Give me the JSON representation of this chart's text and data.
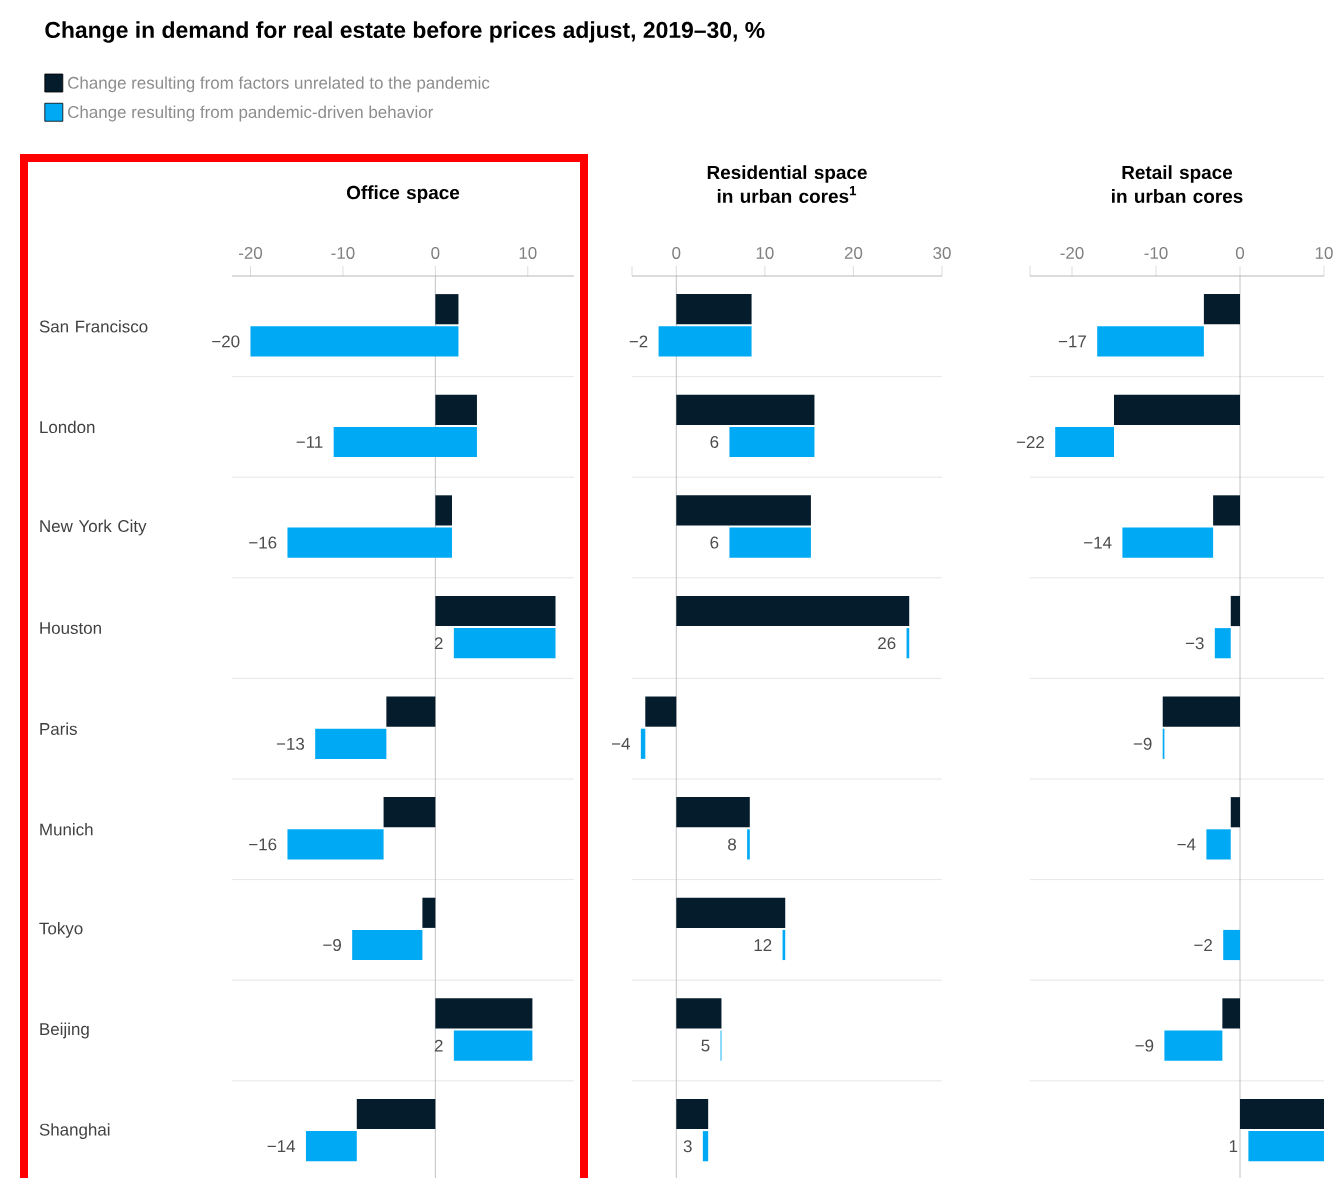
{
  "chart_data": [
    {
      "type": "bar",
      "title": "Change in demand for real estate before prices adjust, 2019–30, %",
      "subtitle": "Office space",
      "orientation": "horizontal",
      "legend": "top left",
      "grid": "y",
      "categories": [
        "San Francisco",
        "London",
        "New York City",
        "Houston",
        "Paris",
        "Munich",
        "Tokyo",
        "Beijing",
        "Shanghai"
      ],
      "series": [
        {
          "name": "Change resulting from factors unrelated to the pandemic",
          "color": "#051c2c",
          "values": [
            2.5,
            4.5,
            1.8,
            13,
            -5.3,
            -5.6,
            -1.4,
            10.5,
            -8.5
          ]
        },
        {
          "name": "Change resulting from pandemic-driven behavior",
          "color": "#00a9f4",
          "base": [
            2.5,
            4.5,
            1.8,
            13,
            -5.3,
            -5.6,
            -1.4,
            10.5,
            -8.5
          ],
          "values": [
            -22.5,
            -15.5,
            -17.8,
            -11,
            -7.7,
            -10.4,
            -7.6,
            -8.5,
            -5.5
          ],
          "value_labels": [
            "−20",
            "−11",
            "−16",
            "2",
            "−13",
            "−16",
            "−9",
            "2",
            "−14"
          ]
        }
      ],
      "xlim": [
        -22,
        15
      ],
      "xticks": [
        -20,
        -10,
        0,
        10
      ]
    },
    {
      "type": "bar",
      "subtitle": "Residential space in urban cores$^{1}$",
      "orientation": "horizontal",
      "grid": "y",
      "tick_labels": "x",
      "categories": [
        null,
        null,
        null,
        null,
        null,
        null,
        null,
        null,
        null
      ],
      "series": [
        {
          "color": "#051c2c",
          "values": [
            8.5,
            15.6,
            15.2,
            26.3,
            -3.5,
            8.3,
            12.3,
            5.1,
            3.6
          ]
        },
        {
          "color": "#00a9f4",
          "base": [
            8.5,
            15.6,
            15.2,
            26.3,
            -3.5,
            8.3,
            12.3,
            5.1,
            3.6
          ],
          "values": [
            -10.5,
            -9.6,
            -9.2,
            -0.3,
            -0.5,
            -0.3,
            -0.3,
            -0.1,
            -0.6
          ],
          "value_labels": [
            "−2",
            "6",
            "6",
            "26",
            "−4",
            "8",
            "12",
            "5",
            "3"
          ]
        }
      ],
      "xlim": [
        -5,
        30
      ],
      "xticks": [
        {
          "value": -5,
          "label": null
        },
        0,
        10,
        20,
        30
      ]
    },
    {
      "type": "bar",
      "subtitle": "Retail space in urban cores",
      "orientation": "horizontal",
      "grid": "y",
      "tick_labels": "x",
      "categories": [
        null,
        null,
        null,
        null,
        null,
        null,
        null,
        null,
        null
      ],
      "series": [
        {
          "color": "#051c2c",
          "values": [
            -4.3,
            -15,
            -3.2,
            -1.1,
            -9.2,
            -1.1,
            0,
            -2.1,
            10
          ]
        },
        {
          "color": "#00a9f4",
          "base": [
            -4.3,
            -15,
            -3.2,
            -1.1,
            -9.2,
            -1.1,
            0,
            -2.1,
            10
          ],
          "values": [
            -12.7,
            -7,
            -10.8,
            -1.9,
            0.2,
            -2.9,
            -2,
            -6.9,
            -9
          ],
          "value_labels": [
            "−17",
            "−22",
            "−14",
            "−3",
            "−9",
            "−4",
            "−2",
            "−9",
            "1"
          ]
        }
      ],
      "xlim": [
        -25,
        10
      ],
      "xticks": [
        {
          "value": -25,
          "label": null
        },
        -20,
        -10,
        0,
        10
      ]
    }
  ]
}
